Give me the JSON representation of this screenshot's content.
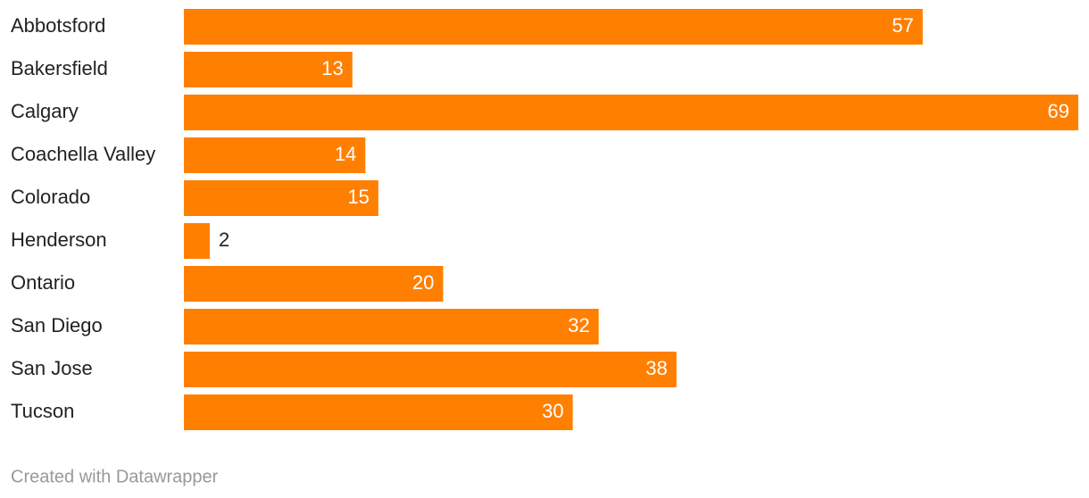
{
  "chart_data": {
    "type": "bar",
    "orientation": "horizontal",
    "categories": [
      "Abbotsford",
      "Bakersfield",
      "Calgary",
      "Coachella Valley",
      "Colorado",
      "Henderson",
      "Ontario",
      "San Diego",
      "San Jose",
      "Tucson"
    ],
    "values": [
      57,
      13,
      69,
      14,
      15,
      2,
      20,
      32,
      38,
      30
    ],
    "color": "#ff7f00",
    "credit": "Created with Datawrapper"
  }
}
